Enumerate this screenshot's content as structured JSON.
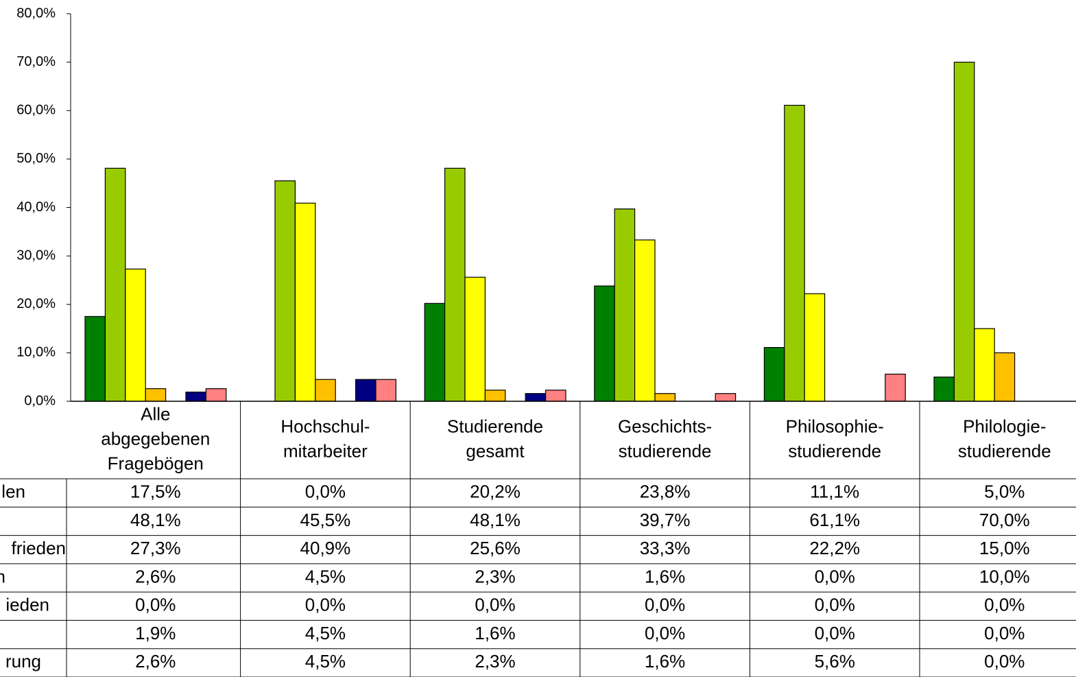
{
  "chart_data": {
    "type": "bar",
    "categories": [
      "Alle\nabgegebenen\nFragebögen",
      "Hochschul-\nmitarbeiter",
      "Studierende\ngesamt",
      "Geschichts-\nstudierende",
      "Philosophie-\nstudierende",
      "Philologie-\nstudierende"
    ],
    "series": [
      {
        "name": "len",
        "color": "#008000",
        "values": [
          17.5,
          0.0,
          20.2,
          23.8,
          11.1,
          5.0
        ],
        "value_labels": [
          "17,5%",
          "0,0%",
          "20,2%",
          "23,8%",
          "11,1%",
          "5,0%"
        ]
      },
      {
        "name": null,
        "color": "#99cc00",
        "values": [
          48.1,
          45.5,
          48.1,
          39.7,
          61.1,
          70.0
        ],
        "value_labels": [
          "48,1%",
          "45,5%",
          "48,1%",
          "39,7%",
          "61,1%",
          "70,0%"
        ]
      },
      {
        "name": "frieden",
        "color": "#ffff00",
        "values": [
          27.3,
          40.9,
          25.6,
          33.3,
          22.2,
          15.0
        ],
        "value_labels": [
          "27,3%",
          "40,9%",
          "25,6%",
          "33,3%",
          "22,2%",
          "15,0%"
        ]
      },
      {
        "name": "n",
        "color": "#ffc000",
        "values": [
          2.6,
          4.5,
          2.3,
          1.6,
          0.0,
          10.0
        ],
        "value_labels": [
          "2,6%",
          "4,5%",
          "2,3%",
          "1,6%",
          "0,0%",
          "10,0%"
        ]
      },
      {
        "name": "ieden",
        "values": [
          0.0,
          0.0,
          0.0,
          0.0,
          0.0,
          0.0
        ],
        "value_labels": [
          "0,0%",
          "0,0%",
          "0,0%",
          "0,0%",
          "0,0%",
          "0,0%"
        ]
      },
      {
        "name": null,
        "color": "#000080",
        "values": [
          1.9,
          4.5,
          1.6,
          0.0,
          0.0,
          0.0
        ],
        "value_labels": [
          "1,9%",
          "4,5%",
          "1,6%",
          "0,0%",
          "0,0%",
          "0,0%"
        ]
      },
      {
        "name": "rung",
        "color": "#ff8080",
        "values": [
          2.6,
          4.5,
          2.3,
          1.6,
          5.6,
          0.0
        ],
        "value_labels": [
          "2,6%",
          "4,5%",
          "2,3%",
          "1,6%",
          "5,6%",
          "0,0%"
        ]
      }
    ],
    "ylim": [
      0,
      80
    ],
    "yticks": [
      {
        "value": 0,
        "label": "0,0%"
      },
      {
        "value": 10,
        "label": "10,0%"
      },
      {
        "value": 20,
        "label": "20,0%"
      },
      {
        "value": 30,
        "label": "30,0%"
      },
      {
        "value": 40,
        "label": "40,0%"
      },
      {
        "value": 50,
        "label": "50,0%"
      },
      {
        "value": 60,
        "label": "60,0%"
      },
      {
        "value": 70,
        "label": "70,0%"
      },
      {
        "value": 80,
        "label": "80,0%"
      }
    ]
  }
}
